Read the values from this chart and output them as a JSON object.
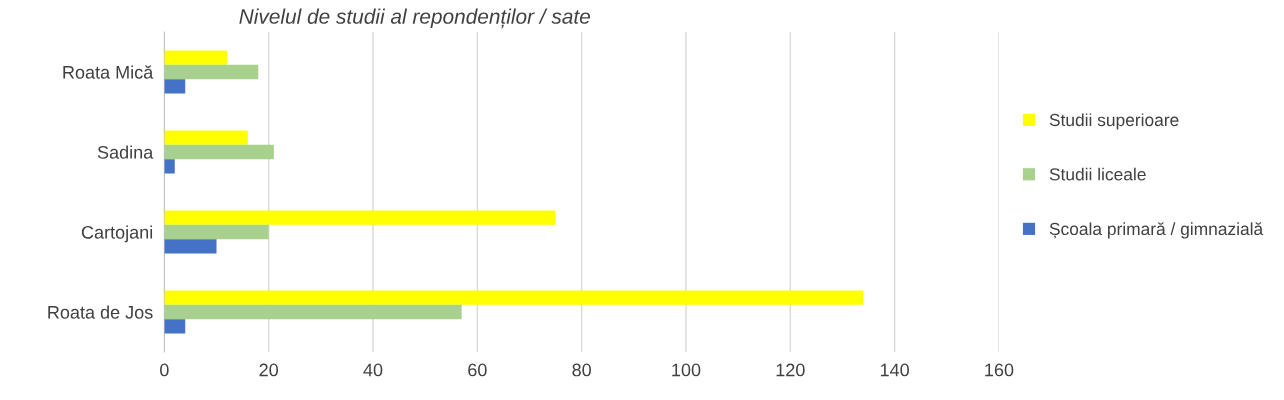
{
  "chart_data": {
    "type": "bar",
    "orientation": "horizontal",
    "title": "Nivelul de studii al repondenților / sate",
    "categories": [
      "Roata Mică",
      "Sadina",
      "Cartojani",
      "Roata de Jos"
    ],
    "series": [
      {
        "name": "Studii superioare",
        "color": "#ffff00",
        "values": [
          12,
          16,
          75,
          134
        ]
      },
      {
        "name": "Studii liceale",
        "color": "#a9d18e",
        "values": [
          18,
          21,
          20,
          57
        ]
      },
      {
        "name": "Școala primară / gimnazială",
        "color": "#4472c4",
        "values": [
          4,
          2,
          10,
          4
        ]
      }
    ],
    "xlim": [
      0,
      160
    ],
    "xticks": [
      0,
      20,
      40,
      60,
      80,
      100,
      120,
      140,
      160
    ],
    "grid": "x",
    "legend": "right"
  }
}
